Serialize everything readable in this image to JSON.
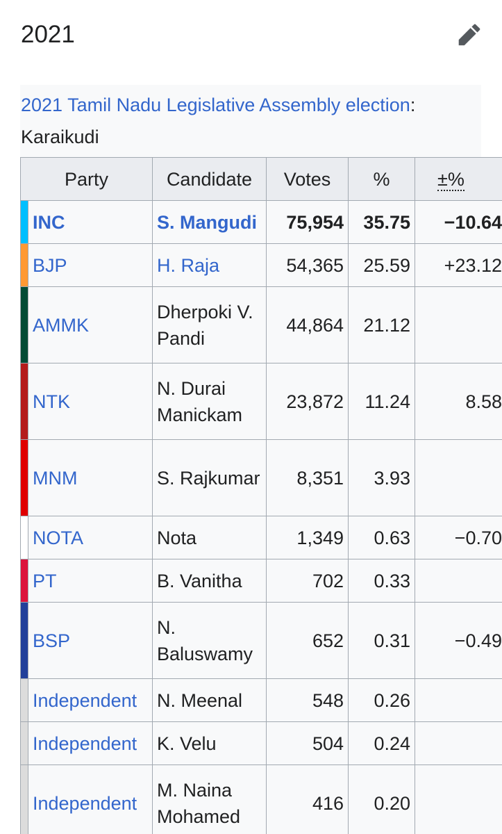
{
  "section": {
    "heading": "2021",
    "edit_icon": "pencil-icon"
  },
  "caption": {
    "link_text": "2021 Tamil Nadu Legislative Assembly election",
    "suffix": ":",
    "constituency": "Karaikudi"
  },
  "table": {
    "headers": {
      "party": "Party",
      "candidate": "Candidate",
      "votes": "Votes",
      "percent": "%",
      "change": "±%"
    },
    "rows": [
      {
        "color": "#00bfff",
        "party": "INC",
        "candidate": "S. Mangudi",
        "candidate_link": true,
        "votes": "75,954",
        "percent": "35.75",
        "change": "−10.64",
        "bold": true,
        "tall": false
      },
      {
        "color": "#ff9933",
        "party": "BJP",
        "candidate": "H. Raja",
        "candidate_link": true,
        "votes": "54,365",
        "percent": "25.59",
        "change": "+23.12",
        "bold": false,
        "tall": false
      },
      {
        "color": "#024b35",
        "party": "AMMK",
        "candidate": "Dherpoki V. Pandi",
        "candidate_link": false,
        "votes": "44,864",
        "percent": "21.12",
        "change": "",
        "bold": false,
        "tall": true
      },
      {
        "color": "#b41c1c",
        "party": "NTK",
        "candidate": "N. Durai Manickam",
        "candidate_link": false,
        "votes": "23,872",
        "percent": "11.24",
        "change": "8.58",
        "bold": false,
        "tall": true
      },
      {
        "color": "#e00000",
        "party": "MNM",
        "candidate": "S. Rajkumar",
        "candidate_link": false,
        "votes": "8,351",
        "percent": "3.93",
        "change": "",
        "bold": false,
        "tall": true
      },
      {
        "color": "#ffffff",
        "party": "NOTA",
        "candidate": "Nota",
        "candidate_link": false,
        "votes": "1,349",
        "percent": "0.63",
        "change": "−0.70",
        "bold": false,
        "tall": false
      },
      {
        "color": "#dc143c",
        "party": "PT",
        "candidate": "B. Vanitha",
        "candidate_link": false,
        "votes": "702",
        "percent": "0.33",
        "change": "",
        "bold": false,
        "tall": false
      },
      {
        "color": "#22409a",
        "party": "BSP",
        "candidate": "N. Baluswamy",
        "candidate_link": false,
        "votes": "652",
        "percent": "0.31",
        "change": "−0.49",
        "bold": false,
        "tall": true
      },
      {
        "color": "#dcdcdc",
        "party": "Independent",
        "candidate": "N. Meenal",
        "candidate_link": false,
        "votes": "548",
        "percent": "0.26",
        "change": "",
        "bold": false,
        "tall": false
      },
      {
        "color": "#dcdcdc",
        "party": "Independent",
        "candidate": "K. Velu",
        "candidate_link": false,
        "votes": "504",
        "percent": "0.24",
        "change": "",
        "bold": false,
        "tall": false
      },
      {
        "color": "#dcdcdc",
        "party": "Independent",
        "candidate": "M. Naina Mohamed",
        "candidate_link": false,
        "votes": "416",
        "percent": "0.20",
        "change": "",
        "bold": false,
        "tall": true
      }
    ]
  }
}
